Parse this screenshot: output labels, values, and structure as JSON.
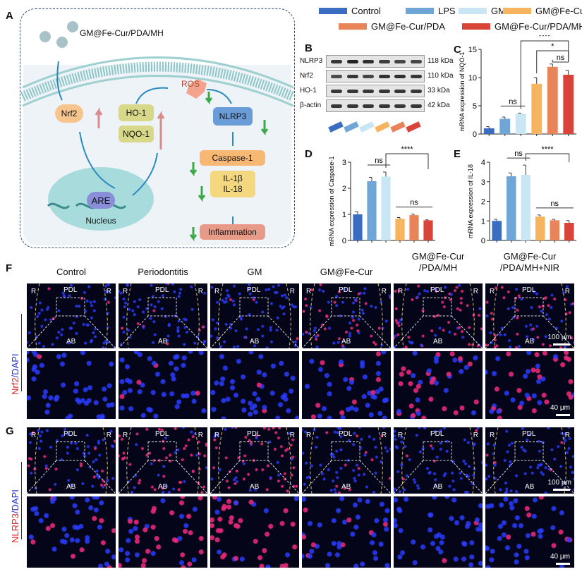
{
  "panels": {
    "A": "A",
    "B": "B",
    "C": "C",
    "D": "D",
    "E": "E",
    "F": "F",
    "G": "G"
  },
  "diagram": {
    "nanoparticle_label": "GM@Fe-Cur/PDA/MH",
    "nrf2": "Nrf2",
    "ho1": "HO-1",
    "nqo1": "NQO-1",
    "ros": "ROS",
    "nlrp3": "NLRP3",
    "caspase1": "Caspase-1",
    "il1b": "IL-1β",
    "il18": "IL-18",
    "inflammation": "Inflammation",
    "are": "ARE",
    "nucleus": "Nucleus",
    "colors": {
      "up_arrow": "#d98a8a",
      "down_arrow": "#3aa845",
      "flow_arrow": "#2a8ac0"
    }
  },
  "legend": [
    {
      "label": "Control",
      "color": "#3a6cc0"
    },
    {
      "label": "LPS",
      "color": "#6fa6d6"
    },
    {
      "label": "GM",
      "color": "#c8e6f3"
    },
    {
      "label": "GM@Fe-Cur",
      "color": "#f6b45e"
    },
    {
      "label": "GM@Fe-Cur/PDA",
      "color": "#e8845a"
    },
    {
      "label": "GM@Fe-Cur/PDA/MH",
      "color": "#d8443a"
    }
  ],
  "blot": {
    "rows": [
      {
        "protein": "NLRP3",
        "kda": "118 kDa"
      },
      {
        "protein": "Nrf2",
        "kda": "110 kDa"
      },
      {
        "protein": "HO-1",
        "kda": "33 kDa"
      },
      {
        "protein": "β-actin",
        "kda": "42 kDa"
      }
    ]
  },
  "chart_data": [
    {
      "panel": "C",
      "type": "bar",
      "ylabel": "mRNA expression of NQO-1",
      "ylim": [
        0,
        15
      ],
      "yticks": [
        0,
        5,
        10,
        15
      ],
      "categories": [
        "Control",
        "LPS",
        "GM",
        "GM@Fe-Cur",
        "GM@Fe-Cur/PDA",
        "GM@Fe-Cur/PDA/MH"
      ],
      "values": [
        1.0,
        2.7,
        3.6,
        8.9,
        11.9,
        10.5
      ],
      "errors": [
        0.3,
        0.3,
        0.1,
        1.1,
        0.5,
        0.8
      ],
      "significance": [
        {
          "from": 1,
          "to": 2,
          "label": "ns"
        },
        {
          "from": 2,
          "to": 5,
          "label": "****"
        },
        {
          "from": 3,
          "to": 5,
          "label": "*"
        },
        {
          "from": 4,
          "to": 5,
          "label": "ns"
        }
      ]
    },
    {
      "panel": "D",
      "type": "bar",
      "ylabel": "mRNA expression of Caspase-1",
      "ylim": [
        0,
        3
      ],
      "yticks": [
        0,
        1,
        2,
        3
      ],
      "categories": [
        "Control",
        "LPS",
        "GM",
        "GM@Fe-Cur",
        "GM@Fe-Cur/PDA",
        "GM@Fe-Cur/PDA/MH"
      ],
      "values": [
        1.0,
        2.27,
        2.45,
        0.83,
        0.97,
        0.77
      ],
      "errors": [
        0.1,
        0.15,
        0.17,
        0.05,
        0.04,
        0.02
      ],
      "significance": [
        {
          "from": 1,
          "to": 2,
          "label": "ns"
        },
        {
          "from": 2,
          "to": 5,
          "label": "****"
        },
        {
          "from": 3,
          "to": 5,
          "label": "ns"
        }
      ]
    },
    {
      "panel": "E",
      "type": "bar",
      "ylabel": "mRNA expression of IL-18",
      "ylim": [
        0,
        4
      ],
      "yticks": [
        0,
        1,
        2,
        3,
        4
      ],
      "categories": [
        "Control",
        "LPS",
        "GM",
        "GM@Fe-Cur",
        "GM@Fe-Cur/PDA",
        "GM@Fe-Cur/PDA/MH"
      ],
      "values": [
        1.0,
        3.28,
        3.35,
        1.22,
        1.03,
        0.9
      ],
      "errors": [
        0.08,
        0.17,
        0.5,
        0.08,
        0.05,
        0.12
      ],
      "significance": [
        {
          "from": 1,
          "to": 2,
          "label": "ns"
        },
        {
          "from": 2,
          "to": 5,
          "label": "****"
        },
        {
          "from": 3,
          "to": 5,
          "label": "ns"
        }
      ]
    }
  ],
  "microscopy": {
    "groups": [
      "Control",
      "Periodontitis",
      "GM",
      "GM@Fe-Cur",
      "GM@Fe-Cur\n/PDA/MH",
      "GM@Fe-Cur\n/PDA/MH+NIR"
    ],
    "labels": {
      "R": "R",
      "PDL": "PDL",
      "AB": "AB"
    },
    "scale_low": "100 μm",
    "scale_high": "40 μm",
    "F": {
      "stain_red": "Nrf2",
      "sep": "/",
      "stain_blue": "DAPI",
      "red_level": [
        0.05,
        0.05,
        0.08,
        0.35,
        0.6,
        0.5
      ]
    },
    "G": {
      "stain_red": "NLRP3",
      "sep": "/",
      "stain_blue": "DAPI",
      "red_level": [
        0.3,
        0.7,
        0.75,
        0.15,
        0.1,
        0.1
      ]
    }
  }
}
